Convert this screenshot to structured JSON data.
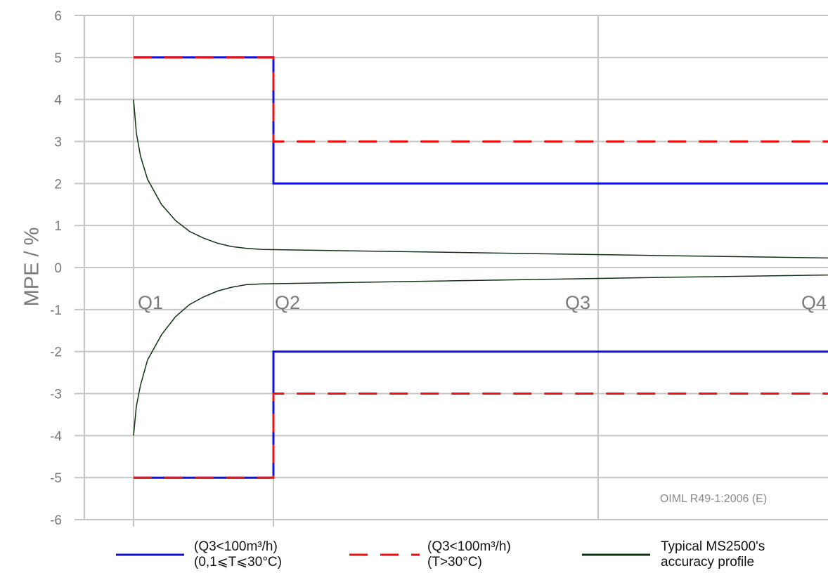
{
  "chart_data": {
    "type": "line",
    "ylabel": "MPE / %",
    "xlabel": "",
    "ylim": [
      -6,
      6
    ],
    "y_ticks": [
      "6",
      "5",
      "4",
      "3",
      "2",
      "1",
      "0",
      "-1",
      "-2",
      "-3",
      "-4",
      "-5",
      "-6"
    ],
    "x_categories": [
      "Q1",
      "Q2",
      "Q3",
      "Q4"
    ],
    "grid": true,
    "legend_position": "bottom",
    "source_note": "OIML R49-1:2006 (E)",
    "colors": {
      "blue": "#1010e0",
      "red": "#ee1111",
      "dark": "#0d3311",
      "grid": "#c4c4c4",
      "text": "#777777"
    },
    "series": [
      {
        "name_lines": [
          "(Q3<100m³/h)",
          "(0,1⩽T⩽30°C)"
        ],
        "style": "solid",
        "color": "#1010e0",
        "upper": [
          {
            "x": 0,
            "y": 5
          },
          {
            "x": 1,
            "y": 5
          },
          {
            "x": 1,
            "y": 2
          },
          {
            "x": 4,
            "y": 2
          }
        ],
        "lower": [
          {
            "x": 0,
            "y": -5
          },
          {
            "x": 1,
            "y": -5
          },
          {
            "x": 1,
            "y": -2
          },
          {
            "x": 4,
            "y": -2
          }
        ]
      },
      {
        "name_lines": [
          "(Q3<100m³/h)",
          "(T>30°C)"
        ],
        "style": "dashed",
        "color": "#ee1111",
        "upper": [
          {
            "x": 0,
            "y": 5
          },
          {
            "x": 1,
            "y": 5
          },
          {
            "x": 1,
            "y": 3
          },
          {
            "x": 4,
            "y": 3
          }
        ],
        "lower": [
          {
            "x": 0,
            "y": -5
          },
          {
            "x": 1,
            "y": -5
          },
          {
            "x": 1,
            "y": -3
          },
          {
            "x": 4,
            "y": -3
          }
        ]
      },
      {
        "name_lines": [
          "Typical MS2500's",
          "accuracy profile"
        ],
        "style": "solid-thin",
        "color": "#0d3311",
        "upper": [
          {
            "x": 0,
            "y": 4.0
          },
          {
            "x": 0.02,
            "y": 3.2
          },
          {
            "x": 0.05,
            "y": 2.65
          },
          {
            "x": 0.1,
            "y": 2.1
          },
          {
            "x": 0.2,
            "y": 1.5
          },
          {
            "x": 0.3,
            "y": 1.12
          },
          {
            "x": 0.4,
            "y": 0.86
          },
          {
            "x": 0.5,
            "y": 0.7
          },
          {
            "x": 0.6,
            "y": 0.58
          },
          {
            "x": 0.7,
            "y": 0.5
          },
          {
            "x": 0.8,
            "y": 0.46
          },
          {
            "x": 0.92,
            "y": 0.43
          },
          {
            "x": 2.33,
            "y": 0.28
          },
          {
            "x": 3.95,
            "y": 0.15
          }
        ],
        "lower": [
          {
            "x": 0,
            "y": -4.0
          },
          {
            "x": 0.02,
            "y": -3.3
          },
          {
            "x": 0.05,
            "y": -2.8
          },
          {
            "x": 0.1,
            "y": -2.2
          },
          {
            "x": 0.2,
            "y": -1.6
          },
          {
            "x": 0.3,
            "y": -1.17
          },
          {
            "x": 0.4,
            "y": -0.88
          },
          {
            "x": 0.5,
            "y": -0.7
          },
          {
            "x": 0.6,
            "y": -0.56
          },
          {
            "x": 0.7,
            "y": -0.47
          },
          {
            "x": 0.8,
            "y": -0.41
          },
          {
            "x": 0.92,
            "y": -0.39
          },
          {
            "x": 2.33,
            "y": -0.23
          },
          {
            "x": 3.95,
            "y": -0.1
          }
        ]
      }
    ]
  }
}
